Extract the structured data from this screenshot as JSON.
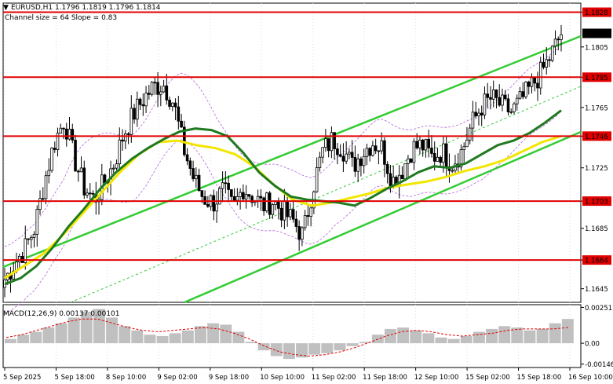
{
  "header": {
    "symbol_line": "EURUSD,H1  1.1796 1.1819 1.1796 1.1814",
    "channel_line": "Channel size = 64 Slope = 0.83",
    "macd_line": "MACD(12,26,9) 0.00137 0.00101"
  },
  "colors": {
    "candle": "#000000",
    "level_line": "#e00000",
    "level_label_bg": "#e00000",
    "level_label_text": "#ffffff",
    "channel": "#33cc33",
    "channel_mid": "#33cc33",
    "ma_fast": "#1f7a1f",
    "ma_slow": "#f2e600",
    "envelope": "#b266d9",
    "macd_hist": "#c0c0c0",
    "macd_signal": "#e00000",
    "current_price_bg": "#000000"
  },
  "chart_data": [
    {
      "type": "candlestick",
      "symbol": "EURUSD",
      "timeframe": "H1",
      "ohlc_current": {
        "open": 1.1796,
        "high": 1.1819,
        "low": 1.1796,
        "close": 1.1814
      },
      "y_ticks": [
        "1.1828",
        "1.1805",
        "1.1785",
        "1.1765",
        "1.1746",
        "1.1725",
        "1.1703",
        "1.1685",
        "1.1664",
        "1.1645"
      ],
      "ylim": [
        1.1636,
        1.1834
      ],
      "x_ticks": [
        "5 Sep 2025",
        "5 Sep 18:00",
        "8 Sep 10:00",
        "9 Sep 02:00",
        "9 Sep 18:00",
        "10 Sep 10:00",
        "11 Sep 02:00",
        "11 Sep 18:00",
        "12 Sep 10:00",
        "15 Sep 02:00",
        "15 Sep 18:00",
        "16 Sep 10:00"
      ],
      "levels": [
        1.1828,
        1.1785,
        1.1746,
        1.1703,
        1.1664
      ],
      "current_price": "1.1814",
      "price_path": [
        1.1651,
        1.1662,
        1.1671,
        1.1685,
        1.1716,
        1.1742,
        1.1757,
        1.1731,
        1.1712,
        1.1704,
        1.1715,
        1.1728,
        1.1748,
        1.1761,
        1.1771,
        1.1779,
        1.178,
        1.1768,
        1.1738,
        1.1718,
        1.1705,
        1.1702,
        1.171,
        1.1698,
        1.1712,
        1.1706,
        1.17,
        1.1703,
        1.1696,
        1.169,
        1.168,
        1.1712,
        1.1736,
        1.1744,
        1.1738,
        1.1726,
        1.1735,
        1.1742,
        1.1738,
        1.1716,
        1.1724,
        1.1738,
        1.174,
        1.1732,
        1.1736,
        1.1728,
        1.1736,
        1.1754,
        1.1766,
        1.1771,
        1.1766,
        1.1762,
        1.177,
        1.1779,
        1.1788,
        1.18,
        1.1814
      ],
      "ma_fast": [
        1.1648,
        1.1652,
        1.166,
        1.1672,
        1.1686,
        1.1698,
        1.1711,
        1.1722,
        1.1731,
        1.1738,
        1.1744,
        1.1749,
        1.1751,
        1.175,
        1.1746,
        1.1735,
        1.1722,
        1.1713,
        1.1706,
        1.1704,
        1.1703,
        1.1702,
        1.17,
        1.1705,
        1.1711,
        1.1716,
        1.1722,
        1.1726,
        1.1725,
        1.1728,
        1.1734,
        1.174,
        1.1743,
        1.1748,
        1.1755,
        1.1763
      ],
      "ma_slow": [
        1.1652,
        1.166,
        1.1668,
        1.168,
        1.1694,
        1.1708,
        1.1722,
        1.1734,
        1.1742,
        1.1743,
        1.174,
        1.1738,
        1.1734,
        1.1726,
        1.1714,
        1.1704,
        1.17,
        1.1702,
        1.1705,
        1.1708,
        1.1712,
        1.1714,
        1.1716,
        1.1719,
        1.1723,
        1.1726,
        1.173,
        1.1736,
        1.1742,
        1.1746
      ],
      "channel": {
        "slope": 0.83,
        "size": 64
      },
      "macd": {
        "label": "MACD(12,26,9)",
        "main": 0.00137,
        "signal": 0.00101,
        "y_ticks": [
          "0.00251",
          "0.00",
          "-0.00146"
        ],
        "ylim": [
          -0.0017,
          0.0027
        ],
        "hist": [
          0.0003,
          0.0006,
          0.0008,
          0.0011,
          0.0014,
          0.0018,
          0.0022,
          0.0024,
          0.0018,
          0.0012,
          0.0009,
          0.0006,
          0.0005,
          0.0007,
          0.0009,
          0.0012,
          0.0014,
          0.0013,
          0.0008,
          0.0001,
          -0.0005,
          -0.0009,
          -0.0011,
          -0.001,
          -0.0008,
          -0.0007,
          -0.0005,
          -0.0002,
          0.0001,
          0.0006,
          0.001,
          0.0011,
          0.0009,
          0.0007,
          0.0004,
          0.0003,
          0.0005,
          0.0008,
          0.001,
          0.0012,
          0.0011,
          0.0009,
          0.001,
          0.0014,
          0.0017
        ],
        "signal_line": [
          0.0004,
          0.0006,
          0.0009,
          0.0012,
          0.0015,
          0.0017,
          0.0017,
          0.0014,
          0.0011,
          0.0009,
          0.0008,
          0.0009,
          0.001,
          0.0011,
          0.001,
          0.0007,
          0.0003,
          -0.0002,
          -0.0006,
          -0.0008,
          -0.0009,
          -0.0008,
          -0.0006,
          -0.0003,
          0.0001,
          0.0005,
          0.0008,
          0.0009,
          0.0008,
          0.0006,
          0.0005,
          0.0006,
          0.0007,
          0.0009,
          0.001,
          0.001,
          0.001,
          0.0011
        ]
      }
    }
  ]
}
